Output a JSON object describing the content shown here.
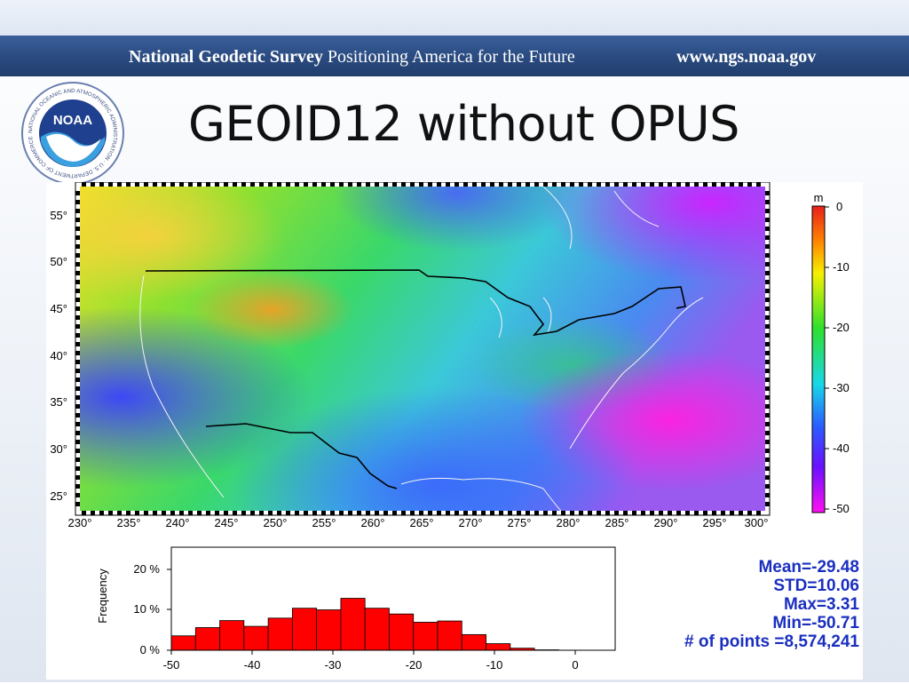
{
  "banner": {
    "org": "National Geodetic Survey",
    "tagline": "Positioning America for the Future",
    "url": "www.ngs.noaa.gov"
  },
  "logo": {
    "name": "NOAA",
    "seal_text": "NATIONAL OCEANIC AND ATMOSPHERIC ADMINISTRATION · U.S. DEPARTMENT OF COMMERCE"
  },
  "slide": {
    "title": "GEOID12 without OPUS"
  },
  "map": {
    "lat_ticks": [
      "55°",
      "50°",
      "45°",
      "40°",
      "35°",
      "30°",
      "25°"
    ],
    "lon_ticks": [
      "230°",
      "235°",
      "240°",
      "245°",
      "250°",
      "255°",
      "260°",
      "265°",
      "270°",
      "275°",
      "280°",
      "285°",
      "290°",
      "295°",
      "300°"
    ]
  },
  "colorbar": {
    "unit": "m",
    "ticks": [
      "0",
      "-10",
      "-20",
      "-30",
      "-40",
      "-50"
    ]
  },
  "stats": {
    "mean": "Mean=-29.48",
    "std": "STD=10.06",
    "max": "Max=3.31",
    "min": "Min=-50.71",
    "points": "# of points =8,574,241"
  },
  "colors": {
    "bar": "#ff0000",
    "stats_text": "#1a2fbf",
    "banner": "#2b4c82"
  },
  "chart_data": {
    "type": "bar",
    "ylabel": "Frequency",
    "x_ticks": [
      "-50",
      "-40",
      "-30",
      "-20",
      "-10",
      "0"
    ],
    "y_ticks": [
      "0 %",
      "10 %",
      "20 %"
    ],
    "xlim": [
      -50,
      5
    ],
    "ylim": [
      0,
      25
    ],
    "bin_width": 3,
    "bin_starts": [
      -50,
      -47,
      -44,
      -41,
      -38,
      -35,
      -32,
      -29,
      -26,
      -23,
      -20,
      -17,
      -14,
      -11,
      -8,
      -5
    ],
    "values": [
      3.5,
      5.5,
      7.2,
      5.8,
      7.8,
      10.2,
      9.8,
      12.6,
      10.2,
      8.8,
      6.8,
      7.1,
      3.8,
      1.6,
      0.5,
      0.1
    ]
  }
}
